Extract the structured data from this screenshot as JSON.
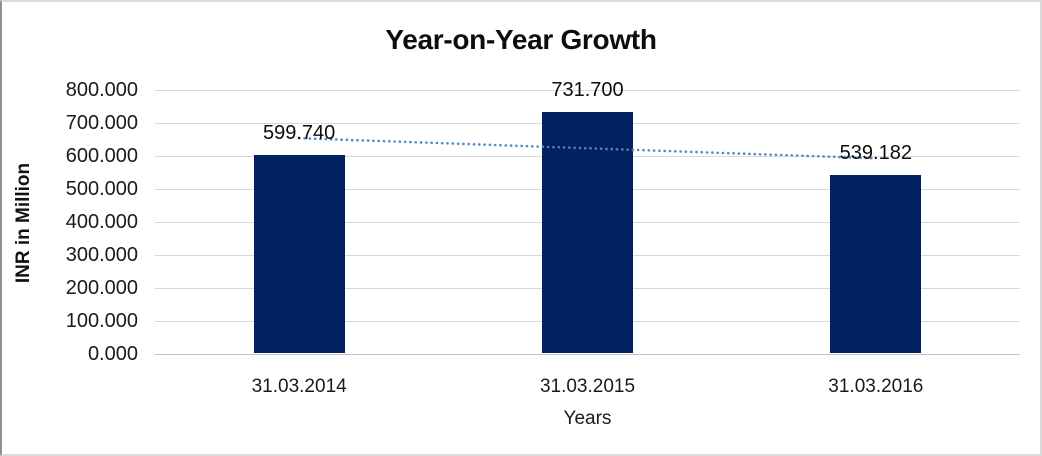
{
  "chart_data": {
    "type": "bar",
    "title": "Year-on-Year Growth",
    "xlabel": "Years",
    "ylabel": "INR in Million",
    "categories": [
      "31.03.2014",
      "31.03.2015",
      "31.03.2016"
    ],
    "values": [
      599.74,
      731.7,
      539.182
    ],
    "data_labels": [
      "599.740",
      "731.700",
      "539.182"
    ],
    "ylim": [
      0,
      800
    ],
    "ytick_step": 100,
    "ytick_labels": [
      "0.000",
      "100.000",
      "200.000",
      "300.000",
      "400.000",
      "500.000",
      "600.000",
      "700.000",
      "800.000"
    ],
    "grid": "horizontal",
    "legend": "none",
    "colors": {
      "bar": "#02215F",
      "trendline": "#4D85C9",
      "gridline": "#D9D9D9",
      "axis_line": "#C3C3C3",
      "text": "#0d0d0d"
    },
    "trendline": {
      "type": "linear",
      "style": "dotted",
      "start_value": 654,
      "end_value": 593
    }
  }
}
